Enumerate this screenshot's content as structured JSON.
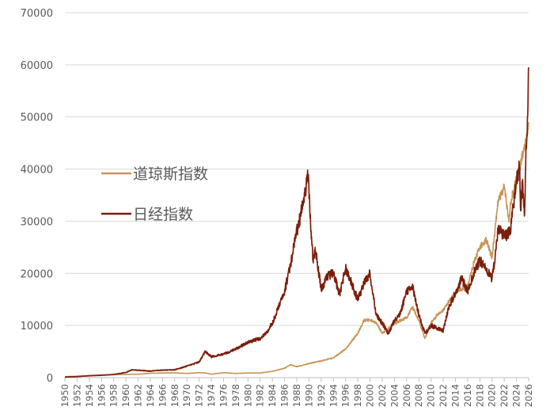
{
  "chart_data": {
    "type": "line",
    "title": "",
    "xlabel": "",
    "ylabel": "",
    "xlim": [
      1950,
      2026
    ],
    "ylim": [
      0,
      70000
    ],
    "y_ticks": [
      0,
      10000,
      20000,
      30000,
      40000,
      50000,
      60000,
      70000
    ],
    "x_ticks": [
      1950,
      1952,
      1954,
      1956,
      1958,
      1960,
      1962,
      1964,
      1966,
      1968,
      1970,
      1972,
      1974,
      1976,
      1978,
      1980,
      1982,
      1984,
      1986,
      1988,
      1990,
      1992,
      1994,
      1996,
      1998,
      2000,
      2002,
      2004,
      2006,
      2008,
      2010,
      2012,
      2014,
      2016,
      2018,
      2020,
      2022,
      2024,
      2026
    ],
    "grid": "horizontal",
    "legend_placement": "center-left",
    "series": [
      {
        "name": "道琼斯指数",
        "color": "#c8955a",
        "points": [
          [
            1950,
            200
          ],
          [
            1952,
            270
          ],
          [
            1954,
            400
          ],
          [
            1956,
            500
          ],
          [
            1958,
            580
          ],
          [
            1960,
            620
          ],
          [
            1962,
            650
          ],
          [
            1964,
            830
          ],
          [
            1966,
            900
          ],
          [
            1968,
            910
          ],
          [
            1970,
            800
          ],
          [
            1972,
            950
          ],
          [
            1973,
            900
          ],
          [
            1974,
            650
          ],
          [
            1976,
            950
          ],
          [
            1978,
            800
          ],
          [
            1980,
            880
          ],
          [
            1982,
            900
          ],
          [
            1984,
            1200
          ],
          [
            1986,
            1800
          ],
          [
            1987,
            2500
          ],
          [
            1988,
            2100
          ],
          [
            1990,
            2700
          ],
          [
            1992,
            3200
          ],
          [
            1994,
            3800
          ],
          [
            1996,
            5500
          ],
          [
            1998,
            8500
          ],
          [
            1999,
            11000
          ],
          [
            2000,
            11000
          ],
          [
            2001,
            10500
          ],
          [
            2002,
            8500
          ],
          [
            2003,
            9500
          ],
          [
            2004,
            10400
          ],
          [
            2006,
            11500
          ],
          [
            2007,
            13500
          ],
          [
            2008,
            11000
          ],
          [
            2009,
            7500
          ],
          [
            2010,
            10500
          ],
          [
            2011,
            12000
          ],
          [
            2012,
            13000
          ],
          [
            2014,
            16500
          ],
          [
            2016,
            17500
          ],
          [
            2017,
            22000
          ],
          [
            2018,
            25000
          ],
          [
            2019,
            26500
          ],
          [
            2020,
            23000
          ],
          [
            2021,
            34000
          ],
          [
            2022,
            36500
          ],
          [
            2022.8,
            30000
          ],
          [
            2023,
            33500
          ],
          [
            2024,
            38000
          ],
          [
            2024.5,
            40000
          ],
          [
            2025,
            43000
          ],
          [
            2025.5,
            45000
          ],
          [
            2026,
            49000
          ]
        ]
      },
      {
        "name": "日经指数",
        "color": "#7b1f0c",
        "points": [
          [
            1950,
            100
          ],
          [
            1952,
            200
          ],
          [
            1954,
            350
          ],
          [
            1956,
            450
          ],
          [
            1958,
            600
          ],
          [
            1960,
            1000
          ],
          [
            1961,
            1500
          ],
          [
            1962,
            1400
          ],
          [
            1964,
            1250
          ],
          [
            1966,
            1450
          ],
          [
            1968,
            1500
          ],
          [
            1970,
            2200
          ],
          [
            1972,
            3000
          ],
          [
            1973,
            5000
          ],
          [
            1974,
            4000
          ],
          [
            1976,
            4500
          ],
          [
            1978,
            5500
          ],
          [
            1980,
            6800
          ],
          [
            1982,
            7500
          ],
          [
            1983,
            8500
          ],
          [
            1984,
            10500
          ],
          [
            1986,
            16500
          ],
          [
            1987,
            22000
          ],
          [
            1988,
            28000
          ],
          [
            1989,
            33000
          ],
          [
            1989.9,
            38900
          ],
          [
            1990.3,
            28000
          ],
          [
            1990.7,
            22000
          ],
          [
            1991,
            25000
          ],
          [
            1992,
            17000
          ],
          [
            1993,
            19500
          ],
          [
            1994,
            20000
          ],
          [
            1995,
            16000
          ],
          [
            1996,
            21000
          ],
          [
            1997,
            18000
          ],
          [
            1998,
            15000
          ],
          [
            1999,
            18000
          ],
          [
            2000,
            20000
          ],
          [
            2001,
            12000
          ],
          [
            2002,
            10500
          ],
          [
            2003,
            8500
          ],
          [
            2004,
            11000
          ],
          [
            2005,
            12500
          ],
          [
            2006,
            16500
          ],
          [
            2007,
            17500
          ],
          [
            2008,
            12000
          ],
          [
            2009,
            8500
          ],
          [
            2010,
            10000
          ],
          [
            2011,
            9500
          ],
          [
            2012,
            9000
          ],
          [
            2013,
            14000
          ],
          [
            2014,
            16000
          ],
          [
            2015,
            19000
          ],
          [
            2016,
            16500
          ],
          [
            2017,
            20000
          ],
          [
            2018,
            22500
          ],
          [
            2019,
            21000
          ],
          [
            2020,
            19000
          ],
          [
            2020.5,
            23000
          ],
          [
            2021,
            28500
          ],
          [
            2022,
            27000
          ],
          [
            2023,
            28000
          ],
          [
            2023.5,
            33000
          ],
          [
            2024,
            38000
          ],
          [
            2024.5,
            40500
          ],
          [
            2024.7,
            32000
          ],
          [
            2025,
            38000
          ],
          [
            2025.3,
            31000
          ],
          [
            2025.5,
            40000
          ],
          [
            2025.8,
            50000
          ],
          [
            2026,
            59500
          ]
        ]
      }
    ]
  }
}
